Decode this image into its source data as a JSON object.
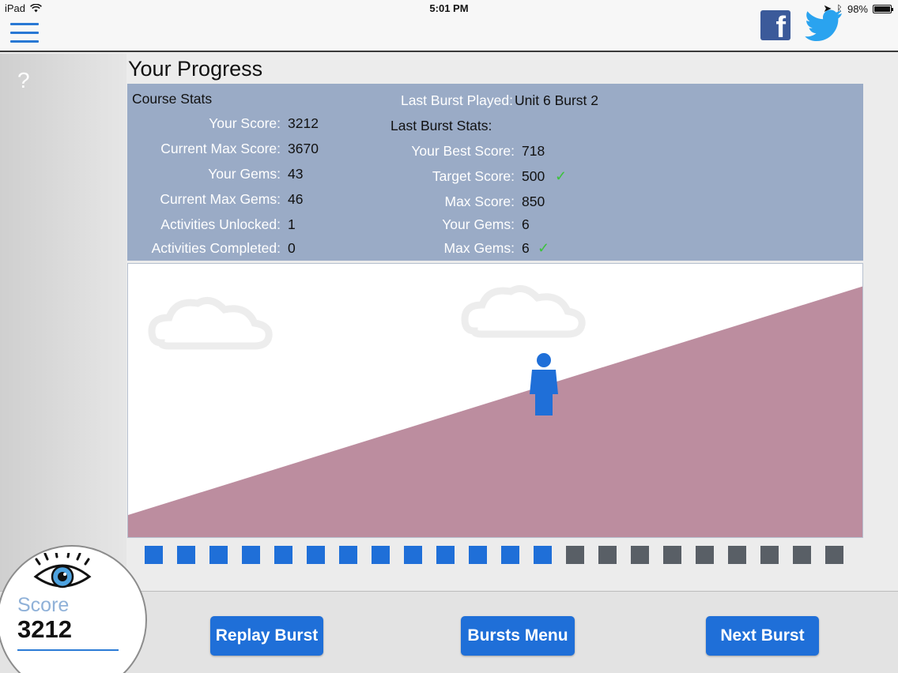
{
  "status_bar": {
    "device": "iPad",
    "time": "5:01 PM",
    "battery": "98%"
  },
  "header": {
    "social": [
      "facebook-icon",
      "twitter-icon"
    ],
    "facebook_glyph": "f",
    "menu_icon": "hamburger-icon"
  },
  "sidebar": {
    "help": "?"
  },
  "page": {
    "title": "Your Progress"
  },
  "course_stats": {
    "title": "Course Stats",
    "rows": [
      {
        "label": "Your Score:",
        "value": "3212"
      },
      {
        "label": "Current Max Score:",
        "value": "3670"
      },
      {
        "label": "Your Gems:",
        "value": "43"
      },
      {
        "label": "Current Max Gems:",
        "value": "46"
      },
      {
        "label": "Activities Unlocked:",
        "value": "1"
      },
      {
        "label": "Activities Completed:",
        "value": "0"
      }
    ]
  },
  "last_burst": {
    "played_label": "Last Burst Played:",
    "played_value": "Unit 6 Burst 2",
    "stats_title": "Last Burst Stats:",
    "rows": [
      {
        "label": "Your Best Score:",
        "value": "718",
        "check": ""
      },
      {
        "label": "Target Score:",
        "value": "500",
        "check": "✓"
      },
      {
        "label": "Max Score:",
        "value": "850",
        "check": ""
      },
      {
        "label": "Your Gems:",
        "value": "6",
        "check": ""
      },
      {
        "label": "Max Gems:",
        "value": "6",
        "check": "✓"
      }
    ]
  },
  "progress": {
    "completed": 13,
    "total": 22
  },
  "colors": {
    "accent": "#1f6fd8",
    "panel": "#9aabc6",
    "hill": "#bc8d9f",
    "todo": "#595f66",
    "check": "#3cc23c"
  },
  "buttons": {
    "replay": "Replay Burst",
    "menu": "Bursts Menu",
    "next": "Next Burst"
  },
  "score_badge": {
    "label": "Score",
    "value": "3212",
    "icon": "eye-icon"
  }
}
